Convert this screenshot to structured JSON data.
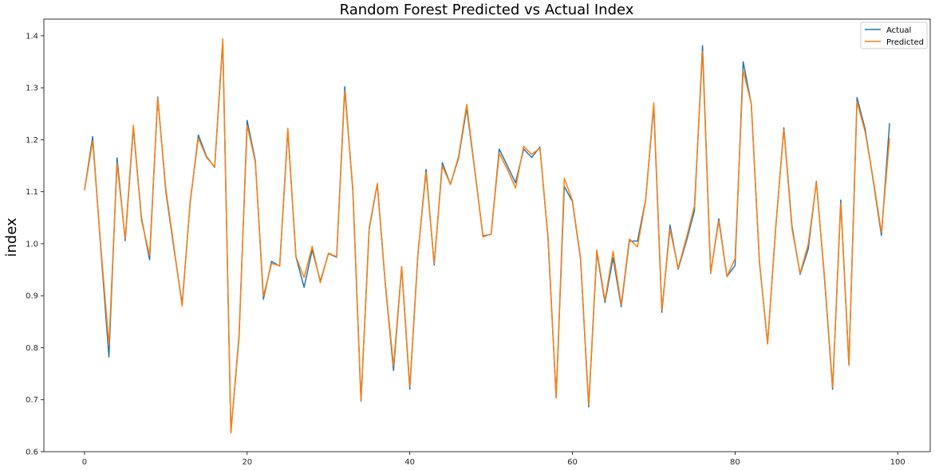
{
  "chart_data": {
    "type": "line",
    "title": "Random Forest Predicted vs Actual Index",
    "xlabel": "",
    "ylabel": "index",
    "xlim": [
      -5,
      104
    ],
    "ylim": [
      0.6,
      1.432
    ],
    "xticks": [
      0,
      20,
      40,
      60,
      80,
      100
    ],
    "yticks": [
      0.6,
      0.7,
      0.8,
      0.9,
      1.0,
      1.1,
      1.2,
      1.3,
      1.4
    ],
    "ytick_labels": [
      "0.6",
      "0.7",
      "0.8",
      "0.9",
      "1.0",
      "1.1",
      "1.2",
      "1.3",
      "1.4"
    ],
    "grid": false,
    "legend_position": "top-right",
    "x": [
      0,
      1,
      2,
      3,
      4,
      5,
      6,
      7,
      8,
      9,
      10,
      11,
      12,
      13,
      14,
      15,
      16,
      17,
      18,
      19,
      20,
      21,
      22,
      23,
      24,
      25,
      26,
      27,
      28,
      29,
      30,
      31,
      32,
      33,
      34,
      35,
      36,
      37,
      38,
      39,
      40,
      41,
      42,
      43,
      44,
      45,
      46,
      47,
      48,
      49,
      50,
      51,
      52,
      53,
      54,
      55,
      56,
      57,
      58,
      59,
      60,
      61,
      62,
      63,
      64,
      65,
      66,
      67,
      68,
      69,
      70,
      71,
      72,
      73,
      74,
      75,
      76,
      77,
      78,
      79,
      80,
      81,
      82,
      83,
      84,
      85,
      86,
      87,
      88,
      89,
      90,
      91,
      92,
      93,
      94,
      95,
      96,
      97,
      98,
      99
    ],
    "series": [
      {
        "name": "Actual",
        "color": "#1f77b4",
        "values": [
          1.103,
          1.206,
          0.99,
          0.782,
          1.165,
          1.006,
          1.223,
          1.05,
          0.969,
          1.282,
          1.1,
          0.99,
          0.884,
          1.08,
          1.209,
          1.168,
          1.147,
          1.388,
          0.637,
          0.82,
          1.237,
          1.16,
          0.893,
          0.966,
          0.957,
          1.218,
          0.975,
          0.916,
          0.988,
          0.928,
          0.981,
          0.974,
          1.302,
          1.1,
          0.697,
          1.027,
          1.115,
          0.92,
          0.756,
          0.955,
          0.72,
          0.98,
          1.143,
          0.959,
          1.156,
          1.114,
          1.165,
          1.261,
          1.14,
          1.015,
          1.018,
          1.182,
          1.15,
          1.117,
          1.182,
          1.166,
          1.186,
          1.01,
          0.704,
          1.11,
          1.081,
          0.97,
          0.686,
          0.984,
          0.887,
          0.973,
          0.879,
          1.005,
          1.005,
          1.084,
          1.265,
          0.868,
          1.036,
          0.951,
          1.004,
          1.063,
          1.381,
          0.943,
          1.048,
          0.937,
          0.958,
          1.35,
          1.268,
          0.964,
          0.808,
          1.03,
          1.223,
          1.034,
          0.941,
          0.99,
          1.12,
          0.933,
          0.72,
          1.084,
          0.767,
          1.281,
          1.22,
          1.12,
          1.016,
          1.232
        ]
      },
      {
        "name": "Predicted",
        "color": "#ff7f0e",
        "values": [
          1.103,
          1.198,
          0.995,
          0.805,
          1.155,
          1.01,
          1.228,
          1.045,
          0.978,
          1.28,
          1.105,
          0.994,
          0.88,
          1.083,
          1.203,
          1.166,
          1.148,
          1.394,
          0.636,
          0.825,
          1.228,
          1.157,
          0.899,
          0.962,
          0.958,
          1.222,
          0.975,
          0.935,
          0.995,
          0.925,
          0.982,
          0.975,
          1.294,
          1.105,
          0.698,
          1.03,
          1.116,
          0.922,
          0.765,
          0.956,
          0.725,
          0.982,
          1.137,
          0.962,
          1.15,
          1.114,
          1.168,
          1.268,
          1.142,
          1.013,
          1.019,
          1.174,
          1.143,
          1.107,
          1.187,
          1.172,
          1.184,
          1.013,
          0.703,
          1.126,
          1.083,
          0.973,
          0.69,
          0.988,
          0.891,
          0.985,
          0.883,
          1.009,
          0.994,
          1.083,
          1.271,
          0.872,
          1.028,
          0.953,
          1.01,
          1.072,
          1.37,
          0.944,
          1.044,
          0.937,
          0.971,
          1.333,
          1.269,
          0.966,
          0.807,
          1.032,
          1.22,
          1.029,
          0.943,
          0.999,
          1.118,
          0.937,
          0.724,
          1.078,
          0.766,
          1.273,
          1.215,
          1.123,
          1.022,
          1.203
        ]
      }
    ]
  }
}
